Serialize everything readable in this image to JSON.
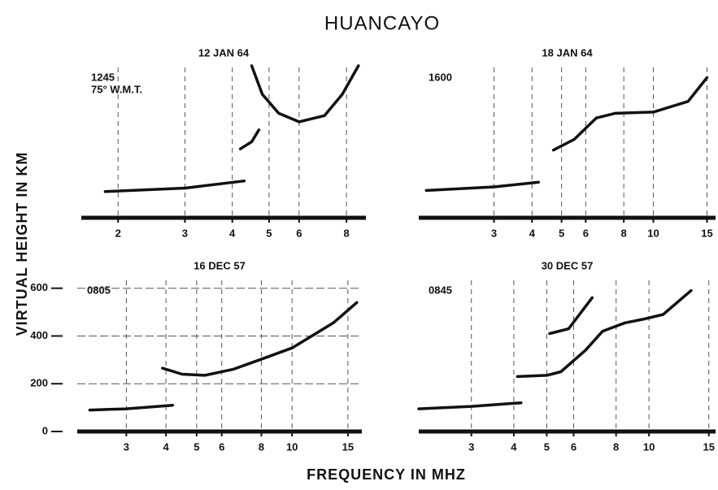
{
  "title": "HUANCAYO",
  "ylabel": "VIRTUAL HEIGHT IN KM",
  "xlabel": "FREQUENCY IN MHZ",
  "chart_data": [
    {
      "type": "line",
      "title": "12 JAN 64",
      "annotations": [
        "1245",
        "75° W.M.T."
      ],
      "xscale": "log",
      "xlim": [
        1.6,
        9
      ],
      "ylim": [
        0,
        650
      ],
      "xticks": [
        2,
        3,
        4,
        5,
        6,
        8
      ],
      "grid": true,
      "color": "#111",
      "series": [
        {
          "x": [
            1.85,
            3,
            4.3
          ],
          "values": [
            110,
            125,
            155
          ]
        },
        {
          "x": [
            4.2,
            4.5,
            4.7
          ],
          "values": [
            290,
            320,
            370
          ]
        },
        {
          "x": [
            4.5,
            4.8,
            5.3,
            6,
            7,
            7.8,
            8.6
          ],
          "values": [
            640,
            520,
            440,
            404,
            430,
            520,
            640
          ]
        }
      ]
    },
    {
      "type": "line",
      "title": "18 JAN 64",
      "annotations": [
        "1600"
      ],
      "xscale": "log",
      "xlim": [
        1.7,
        16
      ],
      "ylim": [
        0,
        650
      ],
      "xticks": [
        3,
        4,
        5,
        6,
        8,
        10,
        15
      ],
      "grid": true,
      "color": "#111",
      "series": [
        {
          "x": [
            1.8,
            3,
            4.2
          ],
          "values": [
            115,
            130,
            150
          ]
        },
        {
          "x": [
            4.7,
            5.5,
            6.5,
            7.5,
            10,
            13,
            15
          ],
          "values": [
            285,
            330,
            420,
            440,
            445,
            490,
            590
          ]
        }
      ]
    },
    {
      "type": "line",
      "title": "16 DEC 57",
      "annotations": [
        "0805"
      ],
      "xscale": "log",
      "xlim": [
        2.1,
        16.6
      ],
      "ylim": [
        0,
        650
      ],
      "xticks": [
        3,
        4,
        5,
        6,
        8,
        10,
        15
      ],
      "yticks": [
        0,
        200,
        400,
        600
      ],
      "grid": true,
      "color": "#111",
      "series": [
        {
          "x": [
            2.3,
            3,
            4.2
          ],
          "values": [
            90,
            95,
            110
          ]
        },
        {
          "x": [
            3.9,
            4.5,
            5.3,
            6.5,
            7.9,
            10,
            13.5,
            16
          ],
          "values": [
            265,
            240,
            235,
            260,
            300,
            350,
            455,
            540
          ]
        }
      ]
    },
    {
      "type": "line",
      "title": "30 DEC 57",
      "annotations": [
        "0845"
      ],
      "xscale": "log",
      "xlim": [
        2.1,
        15.7
      ],
      "ylim": [
        0,
        650
      ],
      "xticks": [
        3,
        4,
        5,
        6,
        8,
        10,
        15
      ],
      "grid": true,
      "color": "#111",
      "series": [
        {
          "x": [
            2.1,
            3,
            4.2
          ],
          "values": [
            95,
            105,
            120
          ]
        },
        {
          "x": [
            4.1,
            5,
            5.5,
            6.5,
            7.3,
            8.5,
            9.6,
            11,
            13.3
          ],
          "values": [
            230,
            235,
            250,
            340,
            420,
            455,
            470,
            490,
            590
          ]
        },
        {
          "x": [
            5.1,
            5.8,
            6.8
          ],
          "values": [
            410,
            430,
            560
          ]
        }
      ]
    }
  ]
}
